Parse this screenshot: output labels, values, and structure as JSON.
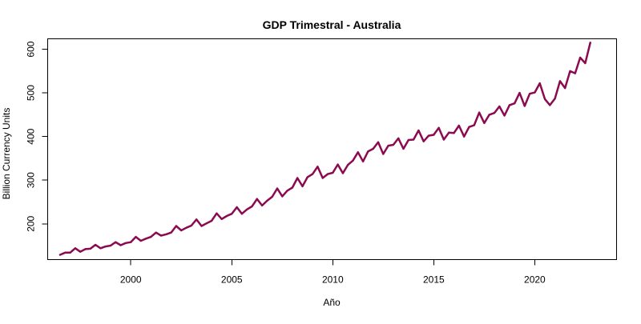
{
  "chart_data": {
    "type": "line",
    "title": "GDP Trimestral - Australia",
    "xlabel": "Año",
    "ylabel": "Billion Currency Units",
    "xlim": [
      1996.5,
      2023.0
    ],
    "ylim": [
      118,
      624
    ],
    "x_ticks": [
      2000,
      2005,
      2010,
      2015,
      2020
    ],
    "y_ticks": [
      200,
      300,
      400,
      500,
      600
    ],
    "grid": false,
    "series": [
      {
        "color": "#8b0a50",
        "x": [
          1996.5,
          1996.75,
          1997.0,
          1997.25,
          1997.5,
          1997.75,
          1998.0,
          1998.25,
          1998.5,
          1998.75,
          1999.0,
          1999.25,
          1999.5,
          1999.75,
          2000.0,
          2000.25,
          2000.5,
          2000.75,
          2001.0,
          2001.25,
          2001.5,
          2001.75,
          2002.0,
          2002.25,
          2002.5,
          2002.75,
          2003.0,
          2003.25,
          2003.5,
          2003.75,
          2004.0,
          2004.25,
          2004.5,
          2004.75,
          2005.0,
          2005.25,
          2005.5,
          2005.75,
          2006.0,
          2006.25,
          2006.5,
          2006.75,
          2007.0,
          2007.25,
          2007.5,
          2007.75,
          2008.0,
          2008.25,
          2008.5,
          2008.75,
          2009.0,
          2009.25,
          2009.5,
          2009.75,
          2010.0,
          2010.25,
          2010.5,
          2010.75,
          2011.0,
          2011.25,
          2011.5,
          2011.75,
          2012.0,
          2012.25,
          2012.5,
          2012.75,
          2013.0,
          2013.25,
          2013.5,
          2013.75,
          2014.0,
          2014.25,
          2014.5,
          2014.75,
          2015.0,
          2015.25,
          2015.5,
          2015.75,
          2016.0,
          2016.25,
          2016.5,
          2016.75,
          2017.0,
          2017.25,
          2017.5,
          2017.75,
          2018.0,
          2018.25,
          2018.5,
          2018.75,
          2019.0,
          2019.25,
          2019.5,
          2019.75,
          2020.0,
          2020.25,
          2020.5,
          2020.75,
          2021.0,
          2021.25,
          2021.5,
          2021.75,
          2022.0,
          2022.25,
          2022.5,
          2022.75
        ],
        "y": [
          129,
          134,
          134,
          144,
          136,
          142,
          143,
          152,
          144,
          148,
          150,
          158,
          151,
          156,
          158,
          170,
          161,
          166,
          170,
          180,
          173,
          176,
          180,
          195,
          185,
          191,
          196,
          210,
          195,
          201,
          207,
          224,
          211,
          218,
          223,
          238,
          223,
          233,
          240,
          257,
          242,
          253,
          262,
          281,
          263,
          276,
          283,
          305,
          286,
          307,
          314,
          331,
          305,
          314,
          317,
          336,
          316,
          335,
          345,
          364,
          343,
          366,
          372,
          387,
          360,
          379,
          381,
          396,
          372,
          392,
          393,
          414,
          389,
          402,
          404,
          420,
          393,
          409,
          408,
          425,
          400,
          422,
          426,
          455,
          431,
          450,
          454,
          469,
          448,
          472,
          476,
          500,
          470,
          498,
          501,
          522,
          486,
          472,
          487,
          527,
          511,
          550,
          545,
          581,
          568,
          615
        ]
      }
    ]
  }
}
